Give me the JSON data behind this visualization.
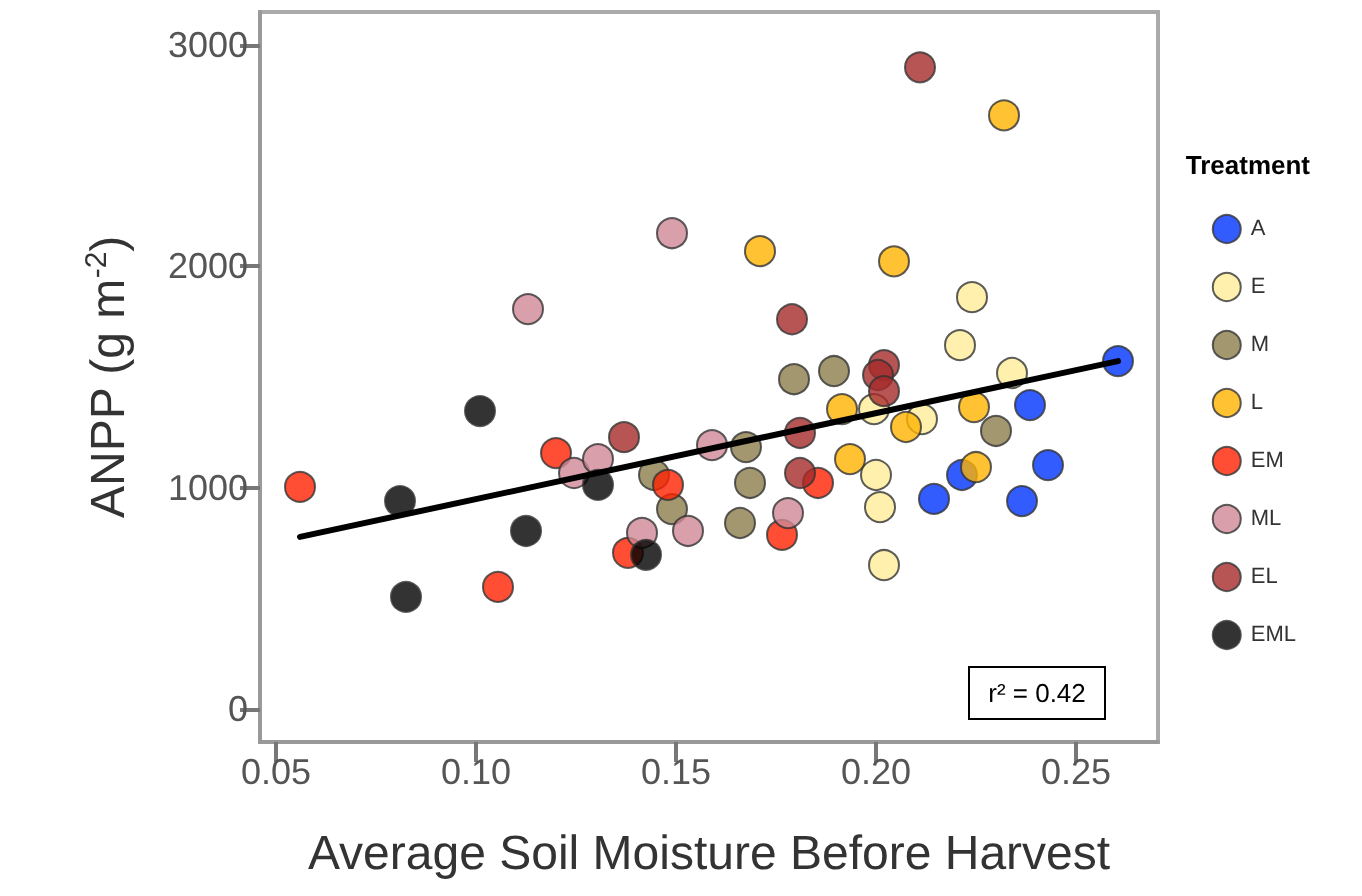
{
  "chart_data": {
    "type": "scatter",
    "xlabel": "Average Soil Moisture Before Harvest",
    "ylabel": "ANPP (g m$^{-2}$)",
    "legend_title": "Treatment",
    "legend": "right",
    "marker": "circle",
    "grid": false,
    "xlim": [
      0.046,
      0.2705
    ],
    "xticks": [
      0.05,
      {
        "value": 0.1,
        "label": "0.10"
      },
      0.15,
      {
        "value": 0.2,
        "label": "0.20"
      },
      0.25
    ],
    "ylim": [
      -150,
      3150
    ],
    "yticks": [
      0,
      1000,
      2000,
      3000
    ],
    "annotations": [
      "r² = 0.42"
    ],
    "series": [
      {
        "name": "A",
        "color": "#0033ff",
        "x": [
          0.2385,
          0.243,
          0.2145,
          0.2215,
          0.2365,
          0.2605
        ],
        "values": [
          1373,
          1102,
          949,
          1057,
          939,
          1572
        ]
      },
      {
        "name": "E",
        "color": "#ffee99",
        "x": [
          0.1995,
          0.2115,
          0.224,
          0.221,
          0.234,
          0.2,
          0.201,
          0.202
        ],
        "values": [
          1355,
          1310,
          1861,
          1644,
          1518,
          1057,
          912,
          650
        ]
      },
      {
        "name": "M",
        "color": "#8b7d4b",
        "x": [
          0.1795,
          0.1895,
          0.23,
          0.1675,
          0.1685,
          0.166,
          0.1445,
          0.149
        ],
        "values": [
          1490,
          1527,
          1256,
          1183,
          1021,
          840,
          1057,
          903
        ]
      },
      {
        "name": "L",
        "color": "#ffb300",
        "x": [
          0.171,
          0.2045,
          0.232,
          0.1915,
          0.2075,
          0.2245,
          0.1935,
          0.225
        ],
        "values": [
          2069,
          2023,
          2683,
          1355,
          1274,
          1364,
          1129,
          1093
        ]
      },
      {
        "name": "EM",
        "color": "#ff2200",
        "x": [
          0.056,
          0.1055,
          0.12,
          0.148,
          0.138,
          0.1855,
          0.1765
        ],
        "values": [
          1003,
          551,
          1156,
          1012,
          705,
          1021,
          786
        ]
      },
      {
        "name": "ML",
        "color": "#d08896",
        "x": [
          0.149,
          0.113,
          0.1245,
          0.1305,
          0.1415,
          0.153,
          0.159,
          0.178
        ],
        "values": [
          2150,
          1807,
          1066,
          1129,
          795,
          804,
          1192,
          885
        ]
      },
      {
        "name": "EL",
        "color": "#a52a2a",
        "x": [
          0.211,
          0.179,
          0.202,
          0.2005,
          0.202,
          0.181,
          0.181,
          0.137
        ],
        "values": [
          2900,
          1761,
          1554,
          1509,
          1436,
          1247,
          1066,
          1228
        ]
      },
      {
        "name": "EML",
        "color": "#000000",
        "x": [
          0.101,
          0.081,
          0.0825,
          0.1125,
          0.1305,
          0.1425
        ],
        "values": [
          1346,
          939,
          506,
          804,
          1012,
          696
        ]
      },
      {
        "type": "line",
        "color": "#000000",
        "marker": "none",
        "x": [
          0.056,
          0.2605
        ],
        "values": [
          777,
          1572
        ]
      }
    ]
  }
}
